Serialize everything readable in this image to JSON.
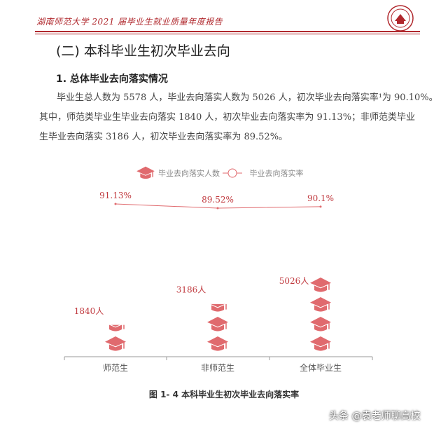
{
  "header": {
    "title": "湖南师范大学 2021 届毕业生就业质量年度报告",
    "logo_icon": "university-seal-icon",
    "accent_color": "#b0282d"
  },
  "section": {
    "title": "(二) 本科毕业生初次毕业去向",
    "subtitle": "1. 总体毕业去向落实情况",
    "paragraph_lines": [
      "毕业生总人数为 5578 人，毕业去向落实人数为 5026 人，初次毕业去向落实率¹为 90.10%。",
      "其中，师范类毕业生毕业去向落实 1840 人，初次毕业去向落实率为 91.13%；非师范类毕业",
      "生毕业去向落实 3186 人，初次毕业去向落实率为 89.52%。"
    ]
  },
  "chart_data": {
    "type": "bar",
    "categories": [
      "师范生",
      "非师范生",
      "全体毕业生"
    ],
    "series": [
      {
        "name": "毕业去向落实人数",
        "values": [
          1840,
          3186,
          5026
        ],
        "labels": [
          "1840人",
          "3186人",
          "5026人"
        ],
        "icon": "graduation-cap-icon",
        "color": "#e06a6e"
      },
      {
        "name": "毕业去向落实率",
        "values": [
          91.13,
          89.52,
          90.1
        ],
        "labels": [
          "91.13%",
          "89.52%",
          "90.1%"
        ],
        "type": "line",
        "color": "#e06a6e"
      }
    ]
  },
  "caption": "图 1- 4  本科毕业生初次毕业去向落实率",
  "watermark": "头条 @袁老师聊高校"
}
